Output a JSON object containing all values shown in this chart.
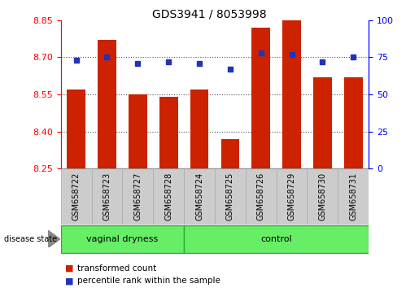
{
  "title": "GDS3941 / 8053998",
  "samples": [
    "GSM658722",
    "GSM658723",
    "GSM658727",
    "GSM658728",
    "GSM658724",
    "GSM658725",
    "GSM658726",
    "GSM658729",
    "GSM658730",
    "GSM658731"
  ],
  "bar_values": [
    8.57,
    8.77,
    8.55,
    8.54,
    8.57,
    8.37,
    8.82,
    8.85,
    8.62,
    8.62
  ],
  "percentile_values": [
    73,
    75,
    71,
    72,
    71,
    67,
    78,
    77,
    72,
    75
  ],
  "y_min": 8.25,
  "y_max": 8.85,
  "y_ticks_left": [
    8.25,
    8.4,
    8.55,
    8.7,
    8.85
  ],
  "y_ticks_right": [
    0,
    25,
    50,
    75,
    100
  ],
  "bar_color": "#cc2200",
  "percentile_color": "#2233bb",
  "group1_label": "vaginal dryness",
  "group2_label": "control",
  "group1_count": 4,
  "group2_count": 6,
  "group_bg_color": "#66ee66",
  "group_edge_color": "#33aa33",
  "tick_area_color": "#cccccc",
  "tick_area_edge": "#aaaaaa",
  "disease_state_label": "disease state",
  "legend_bar_label": "transformed count",
  "legend_percentile_label": "percentile rank within the sample",
  "grid_color": "#555555",
  "title_fontsize": 10,
  "label_fontsize": 8,
  "tick_fontsize": 8
}
